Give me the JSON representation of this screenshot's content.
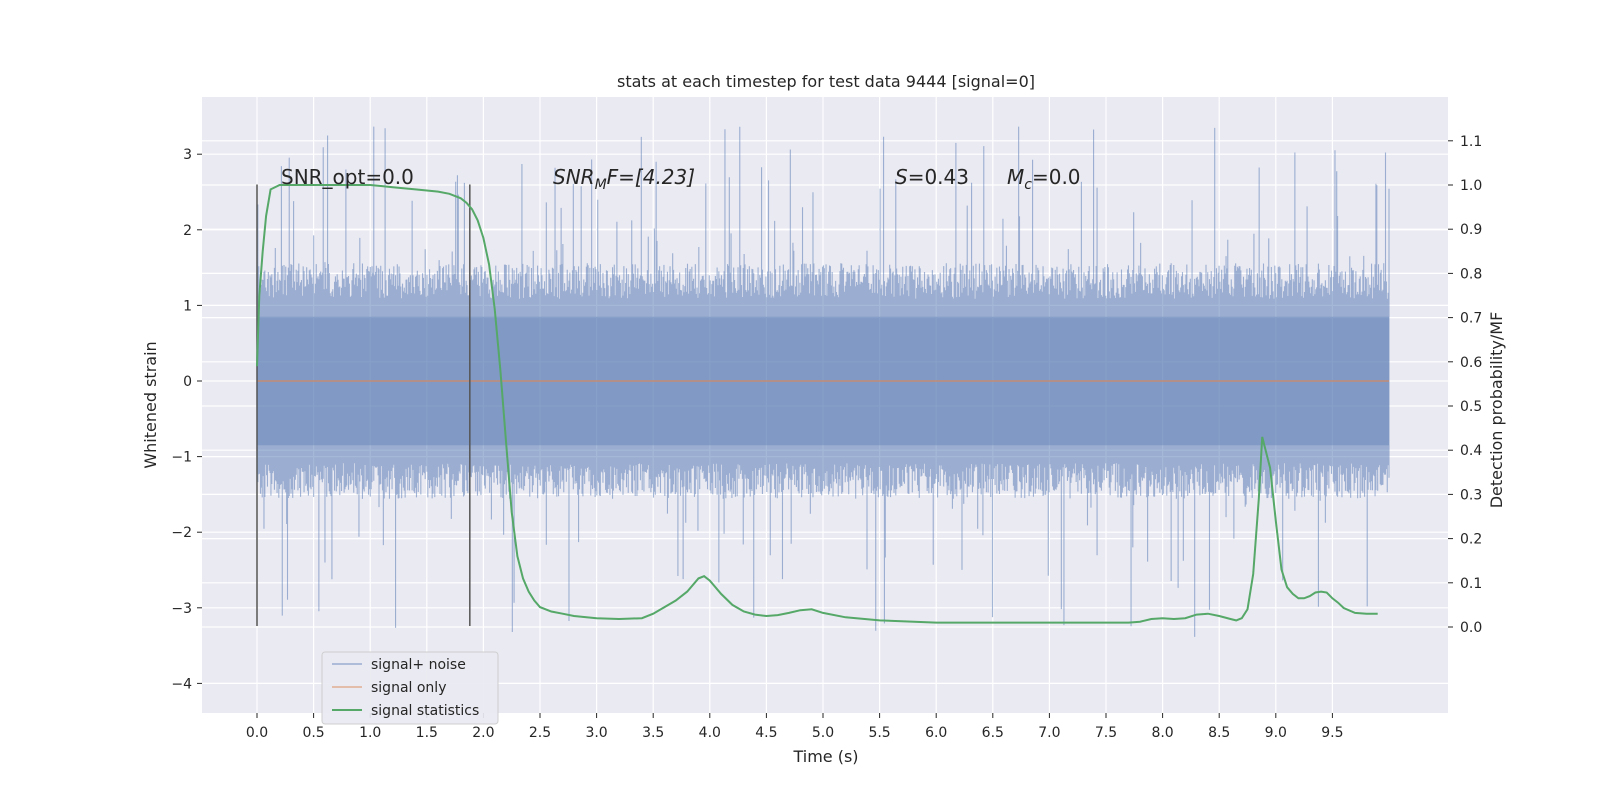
{
  "chart_data": {
    "type": "line",
    "title": "stats at each timestep for test data 9444 [signal=0]",
    "xlabel": "Time (s)",
    "ylabel": "Whitened strain",
    "ylabel_right": "Detection probability/MF",
    "xlim": [
      -0.49,
      10.5
    ],
    "ylim": [
      -4.4,
      3.75
    ],
    "ylim_right": [
      -0.2,
      1.2
    ],
    "x_ticks": [
      "0.0",
      "0.5",
      "1.0",
      "1.5",
      "2.0",
      "2.5",
      "3.0",
      "3.5",
      "4.0",
      "4.5",
      "5.0",
      "5.5",
      "6.0",
      "6.5",
      "7.0",
      "7.5",
      "8.0",
      "8.5",
      "9.0",
      "9.5"
    ],
    "y_ticks": [
      "3",
      "2",
      "1",
      "0",
      "−1",
      "−2",
      "−3",
      "−4"
    ],
    "y_ticks_right": [
      "1.1",
      "1.0",
      "0.9",
      "0.8",
      "0.7",
      "0.6",
      "0.5",
      "0.4",
      "0.3",
      "0.2",
      "0.1",
      "0.0"
    ],
    "grid": true,
    "legend_position": "bottom-left",
    "annotations": {
      "snr_opt": "SNR_opt=0.0",
      "snr_mf": "SNR",
      "snr_mf_sub": "M",
      "snr_mf_tail": "F=[4.23]",
      "s_label": "S",
      "s_value": "=0.43",
      "mc_label": "M",
      "mc_sub": "c",
      "mc_value": "=0.0"
    },
    "vertical_markers_x": [
      0.0,
      1.88
    ],
    "colors": {
      "noise": "#4c72b0",
      "signal_only": "#dd8452",
      "statistics": "#55a868",
      "marker": "#555555",
      "background": "#eaeaf2"
    },
    "series": [
      {
        "name": "signal+ noise",
        "x_range": [
          0.0,
          10.0
        ],
        "approx_envelope": {
          "upper_typical": 1.45,
          "lower_typical": -1.45,
          "max": 3.4,
          "min": -4.05
        }
      },
      {
        "name": "signal only",
        "x": [
          0.0,
          10.0
        ],
        "y": [
          0.0,
          0.0
        ]
      },
      {
        "name": "signal statistics",
        "axis": "right",
        "x": [
          0.0,
          0.02,
          0.05,
          0.08,
          0.12,
          0.2,
          0.3,
          0.5,
          0.8,
          1.0,
          1.2,
          1.4,
          1.6,
          1.7,
          1.8,
          1.85,
          1.9,
          1.95,
          2.0,
          2.05,
          2.1,
          2.15,
          2.2,
          2.25,
          2.3,
          2.35,
          2.4,
          2.45,
          2.5,
          2.6,
          2.7,
          2.8,
          3.0,
          3.2,
          3.4,
          3.5,
          3.6,
          3.7,
          3.8,
          3.9,
          3.95,
          4.0,
          4.1,
          4.2,
          4.3,
          4.4,
          4.5,
          4.6,
          4.7,
          4.8,
          4.9,
          5.0,
          5.2,
          5.5,
          6.0,
          6.5,
          7.0,
          7.5,
          7.7,
          7.8,
          7.9,
          8.0,
          8.1,
          8.2,
          8.3,
          8.4,
          8.5,
          8.6,
          8.65,
          8.7,
          8.75,
          8.8,
          8.85,
          8.88,
          8.95,
          9.0,
          9.05,
          9.1,
          9.15,
          9.2,
          9.25,
          9.3,
          9.35,
          9.4,
          9.45,
          9.5,
          9.55,
          9.6,
          9.7,
          9.8,
          9.9
        ],
        "y": [
          0.59,
          0.75,
          0.85,
          0.93,
          0.99,
          1.0,
          1.0,
          1.0,
          1.0,
          1.0,
          0.995,
          0.99,
          0.985,
          0.98,
          0.97,
          0.96,
          0.945,
          0.92,
          0.88,
          0.82,
          0.72,
          0.58,
          0.42,
          0.26,
          0.16,
          0.11,
          0.08,
          0.06,
          0.045,
          0.035,
          0.03,
          0.025,
          0.02,
          0.018,
          0.02,
          0.03,
          0.045,
          0.06,
          0.08,
          0.11,
          0.115,
          0.105,
          0.075,
          0.05,
          0.035,
          0.028,
          0.025,
          0.027,
          0.032,
          0.038,
          0.04,
          0.032,
          0.022,
          0.015,
          0.01,
          0.01,
          0.01,
          0.01,
          0.01,
          0.012,
          0.018,
          0.02,
          0.018,
          0.02,
          0.028,
          0.03,
          0.025,
          0.018,
          0.015,
          0.02,
          0.04,
          0.12,
          0.29,
          0.43,
          0.36,
          0.24,
          0.13,
          0.09,
          0.075,
          0.065,
          0.065,
          0.07,
          0.078,
          0.08,
          0.078,
          0.065,
          0.055,
          0.043,
          0.032,
          0.03,
          0.03
        ]
      }
    ]
  }
}
